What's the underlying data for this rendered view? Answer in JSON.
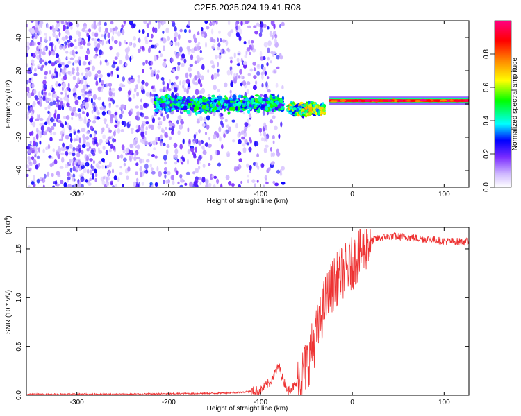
{
  "title": "C2E5.2025.024.19.41.R08",
  "chart_data": [
    {
      "type": "heatmap",
      "xlabel": "Height of straight line (km)",
      "ylabel": "Frequency (Hz)",
      "xlim": [
        -355,
        127
      ],
      "ylim": [
        -50,
        50
      ],
      "xticks": [
        -300,
        -200,
        -100,
        0,
        100
      ],
      "yticks": [
        -40,
        -20,
        0,
        20,
        40
      ],
      "colorbar": {
        "label": "Normalized spectral amplitude",
        "range": [
          0,
          1
        ],
        "ticks": [
          0.0,
          0.2,
          0.4,
          0.6,
          0.8
        ],
        "tick_labels": [
          "0.0",
          "0.2",
          "0.4",
          "0.6",
          "0.8"
        ],
        "colormap": [
          "#ffffff",
          "#7b2cff",
          "#0000ff",
          "#00ffff",
          "#00ff00",
          "#ffff00",
          "#ff8800",
          "#ff0000",
          "#ff0080"
        ]
      },
      "features": [
        {
          "region": "broadband scatter",
          "x_range": [
            -355,
            -75
          ],
          "y_range": [
            -50,
            50
          ],
          "amplitude": 0.15
        },
        {
          "region": "signal band",
          "x_range": [
            -215,
            -75
          ],
          "center_y": 0,
          "spread": 6,
          "amplitude": 0.35
        },
        {
          "region": "transition",
          "x_range": [
            -70,
            -30
          ],
          "center_y": -3,
          "spread": 5,
          "amplitude": 0.5
        },
        {
          "region": "stable line",
          "x_range": [
            -25,
            127
          ],
          "center_y": 2,
          "spread": 2,
          "amplitude": 0.85
        }
      ]
    },
    {
      "type": "line",
      "xlabel": "Height of straight line (km)",
      "ylabel": "SNR (10 * v/v)",
      "y_multiplier": "(x10",
      "y_exponent": "4",
      "xlim": [
        -355,
        127
      ],
      "ylim": [
        0,
        1.72
      ],
      "xticks": [
        -300,
        -200,
        -100,
        0,
        100
      ],
      "yticks": [
        0.0,
        0.5,
        1.0,
        1.5
      ],
      "ytick_labels": [
        "0.0",
        "0.5",
        "1.0",
        "1.5"
      ],
      "series": [
        {
          "color": "#ee3333",
          "points": [
            [
              -355,
              0.01
            ],
            [
              -300,
              0.01
            ],
            [
              -250,
              0.01
            ],
            [
              -200,
              0.015
            ],
            [
              -150,
              0.02
            ],
            [
              -120,
              0.03
            ],
            [
              -100,
              0.05
            ],
            [
              -90,
              0.13
            ],
            [
              -80,
              0.3
            ],
            [
              -75,
              0.15
            ],
            [
              -70,
              0.05
            ],
            [
              -62,
              0.1
            ],
            [
              -55,
              0.2
            ],
            [
              -48,
              0.35
            ],
            [
              -40,
              0.6
            ],
            [
              -35,
              0.75
            ],
            [
              -30,
              0.95
            ],
            [
              -25,
              1.05
            ],
            [
              -20,
              1.15
            ],
            [
              -12,
              1.25
            ],
            [
              -5,
              1.3
            ],
            [
              0,
              1.35
            ],
            [
              8,
              1.45
            ],
            [
              15,
              1.55
            ],
            [
              25,
              1.6
            ],
            [
              40,
              1.63
            ],
            [
              60,
              1.62
            ],
            [
              80,
              1.6
            ],
            [
              100,
              1.58
            ],
            [
              127,
              1.57
            ]
          ]
        }
      ]
    }
  ]
}
